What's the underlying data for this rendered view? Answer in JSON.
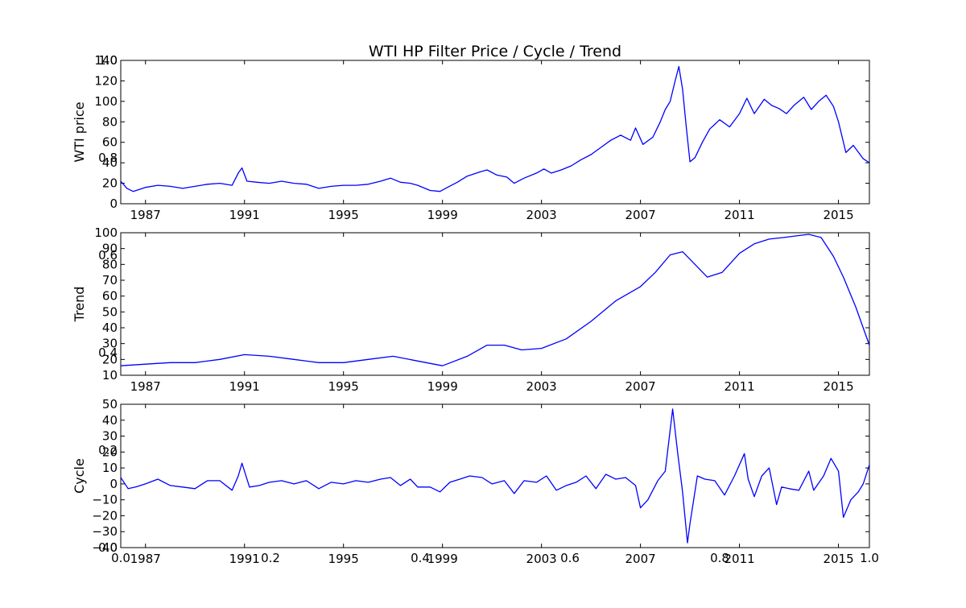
{
  "figure": {
    "title": "WTI HP Filter Price / Cycle / Trend",
    "background_axis_ticks_x": [
      "0.0",
      "0.2",
      "0.4",
      "0.6",
      "0.8",
      "1.0"
    ],
    "background_axis_ticks_y": [
      "1.0",
      "0.8",
      "0.6",
      "0.4",
      "0.2",
      "0.0"
    ]
  },
  "colors": {
    "line": "#0000ff",
    "axes": "#000000",
    "background": "#ffffff"
  },
  "chart_data": [
    {
      "type": "line",
      "title": "",
      "xlabel": "",
      "ylabel": "WTI price",
      "xlim": [
        1986.0,
        2016.25
      ],
      "ylim": [
        0,
        140
      ],
      "xticks": [
        "1987",
        "1991",
        "1995",
        "1999",
        "2003",
        "2007",
        "2011",
        "2015"
      ],
      "yticks": [
        "0",
        "20",
        "40",
        "60",
        "80",
        "100",
        "120",
        "140"
      ],
      "series": [
        {
          "x": [
            1986.0,
            1986.25,
            1986.5,
            1986.75,
            1987.0,
            1987.5,
            1988.0,
            1988.5,
            1989.0,
            1989.5,
            1990.0,
            1990.5,
            1990.75,
            1990.9,
            1991.1,
            1991.5,
            1992.0,
            1992.5,
            1993.0,
            1993.5,
            1994.0,
            1994.5,
            1995.0,
            1995.5,
            1996.0,
            1996.5,
            1996.9,
            1997.3,
            1997.7,
            1998.0,
            1998.5,
            1998.9,
            1999.2,
            1999.6,
            2000.0,
            2000.5,
            2000.8,
            2001.2,
            2001.6,
            2001.9,
            2002.3,
            2002.8,
            2003.1,
            2003.4,
            2003.8,
            2004.2,
            2004.6,
            2005.0,
            2005.4,
            2005.8,
            2006.2,
            2006.6,
            2006.8,
            2007.1,
            2007.5,
            2007.8,
            2008.0,
            2008.2,
            2008.4,
            2008.55,
            2008.7,
            2008.85,
            2009.0,
            2009.2,
            2009.5,
            2009.8,
            2010.2,
            2010.6,
            2011.0,
            2011.3,
            2011.6,
            2012.0,
            2012.3,
            2012.6,
            2012.9,
            2013.2,
            2013.6,
            2013.9,
            2014.2,
            2014.5,
            2014.8,
            2015.0,
            2015.3,
            2015.6,
            2016.0,
            2016.25
          ],
          "y": [
            22,
            15,
            12,
            14,
            16,
            18,
            17,
            15,
            17,
            19,
            20,
            18,
            30,
            35,
            22,
            21,
            20,
            22,
            20,
            19,
            15,
            17,
            18,
            18,
            19,
            22,
            25,
            21,
            20,
            18,
            13,
            12,
            16,
            21,
            27,
            31,
            33,
            28,
            26,
            20,
            25,
            30,
            34,
            30,
            33,
            37,
            43,
            48,
            55,
            62,
            67,
            62,
            74,
            58,
            65,
            80,
            92,
            100,
            120,
            134,
            112,
            75,
            41,
            45,
            60,
            73,
            82,
            75,
            88,
            103,
            88,
            102,
            96,
            93,
            88,
            96,
            104,
            92,
            100,
            106,
            95,
            80,
            50,
            57,
            44,
            40
          ],
          "name": ""
        }
      ]
    },
    {
      "type": "line",
      "title": "",
      "xlabel": "",
      "ylabel": "Trend",
      "xlim": [
        1986.0,
        2016.25
      ],
      "ylim": [
        10,
        100
      ],
      "xticks": [
        "1987",
        "1991",
        "1995",
        "1999",
        "2003",
        "2007",
        "2011",
        "2015"
      ],
      "yticks": [
        "10",
        "20",
        "30",
        "40",
        "50",
        "60",
        "70",
        "80",
        "90",
        "100"
      ],
      "series": [
        {
          "x": [
            1986.0,
            1987.0,
            1988.0,
            1989.0,
            1990.0,
            1991.0,
            1992.0,
            1993.0,
            1994.0,
            1995.0,
            1996.0,
            1997.0,
            1998.0,
            1999.0,
            2000.0,
            2000.8,
            2001.5,
            2002.2,
            2003.0,
            2004.0,
            2005.0,
            2006.0,
            2007.0,
            2007.6,
            2008.2,
            2008.7,
            2009.2,
            2009.7,
            2010.3,
            2011.0,
            2011.6,
            2012.2,
            2012.8,
            2013.3,
            2013.8,
            2014.3,
            2014.8,
            2015.2,
            2015.7,
            2016.25
          ],
          "y": [
            16,
            17,
            18,
            18,
            20,
            23,
            22,
            20,
            18,
            18,
            20,
            22,
            19,
            16,
            22,
            29,
            29,
            26,
            27,
            33,
            44,
            57,
            66,
            75,
            86,
            88,
            80,
            72,
            75,
            87,
            93,
            96,
            97,
            98,
            99,
            97,
            85,
            72,
            53,
            29
          ],
          "name": ""
        }
      ]
    },
    {
      "type": "line",
      "title": "",
      "xlabel": "",
      "ylabel": "Cycle",
      "xlim": [
        1986.0,
        2016.25
      ],
      "ylim": [
        -40,
        50
      ],
      "xticks": [
        "1987",
        "1991",
        "1995",
        "1999",
        "2003",
        "2007",
        "2011",
        "2015"
      ],
      "yticks": [
        "-40",
        "-30",
        "-20",
        "-10",
        "0",
        "10",
        "20",
        "30",
        "40",
        "50"
      ],
      "series": [
        {
          "x": [
            1986.0,
            1986.3,
            1986.6,
            1987.0,
            1987.5,
            1988.0,
            1988.5,
            1989.0,
            1989.5,
            1990.0,
            1990.5,
            1990.75,
            1990.9,
            1991.2,
            1991.6,
            1992.0,
            1992.5,
            1993.0,
            1993.5,
            1994.0,
            1994.5,
            1995.0,
            1995.5,
            1996.0,
            1996.5,
            1996.9,
            1997.3,
            1997.7,
            1998.0,
            1998.5,
            1998.9,
            1999.3,
            1999.7,
            2000.1,
            2000.6,
            2001.0,
            2001.5,
            2001.9,
            2002.3,
            2002.8,
            2003.2,
            2003.6,
            2004.0,
            2004.4,
            2004.8,
            2005.2,
            2005.6,
            2006.0,
            2006.4,
            2006.8,
            2007.0,
            2007.3,
            2007.7,
            2008.0,
            2008.3,
            2008.5,
            2008.7,
            2008.9,
            2009.0,
            2009.15,
            2009.3,
            2009.6,
            2010.0,
            2010.4,
            2010.8,
            2011.2,
            2011.35,
            2011.6,
            2011.9,
            2012.2,
            2012.5,
            2012.7,
            2013.0,
            2013.4,
            2013.8,
            2014.0,
            2014.4,
            2014.7,
            2015.0,
            2015.2,
            2015.5,
            2015.8,
            2016.0,
            2016.25
          ],
          "y": [
            4,
            -3,
            -2,
            0,
            3,
            -1,
            -2,
            -3,
            2,
            2,
            -4,
            5,
            13,
            -2,
            -1,
            1,
            2,
            0,
            2,
            -3,
            1,
            0,
            2,
            1,
            3,
            4,
            -1,
            3,
            -2,
            -2,
            -5,
            1,
            3,
            5,
            4,
            0,
            2,
            -6,
            2,
            1,
            5,
            -4,
            -1,
            1,
            5,
            -3,
            6,
            3,
            4,
            -1,
            -15,
            -10,
            2,
            8,
            47,
            20,
            -5,
            -37,
            -25,
            -10,
            5,
            3,
            2,
            -7,
            5,
            19,
            3,
            -8,
            5,
            10,
            -13,
            -2,
            -3,
            -4,
            8,
            -4,
            5,
            16,
            8,
            -21,
            -10,
            -5,
            0,
            12
          ],
          "name": ""
        }
      ]
    }
  ]
}
